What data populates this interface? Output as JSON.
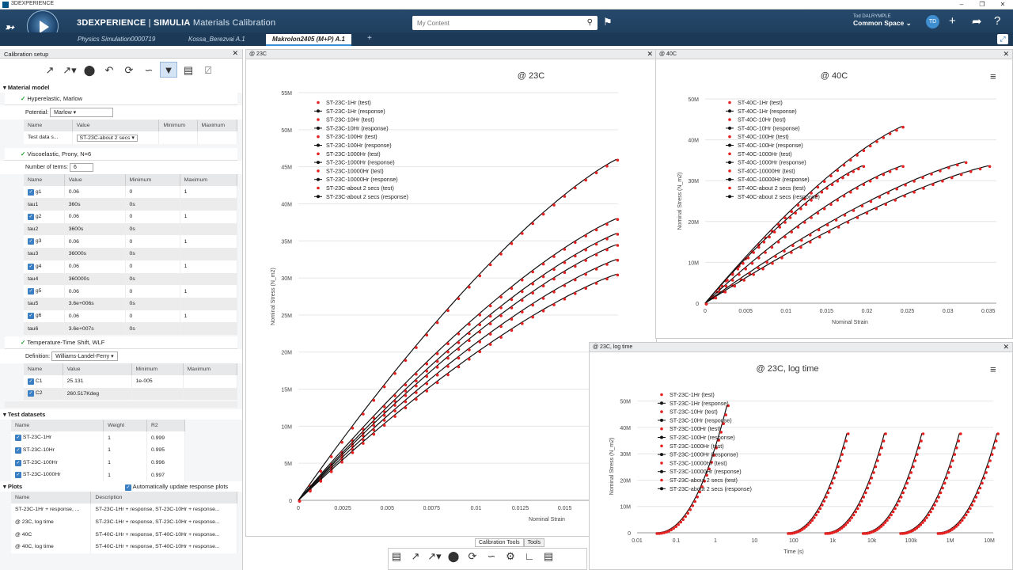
{
  "window": {
    "title": "3DEXPERIENCE"
  },
  "header": {
    "brand_bold": "3DEXPERIENCE",
    "brand_sep": " | ",
    "brand_app": "SIMULIA",
    "brand_sub": "Materials Calibration",
    "user_name": "Tod DALRYMPLE",
    "space": "Common Space",
    "avatar": "TD"
  },
  "search": {
    "placeholder": "My Content"
  },
  "tabs": [
    {
      "label": "Physics Simulation0000719"
    },
    {
      "label": "Kossa_Berezvai A.1"
    },
    {
      "label": "Makrolon2405 (M+P) A.1"
    }
  ],
  "left": {
    "title": "Calibration setup",
    "material_model": "Material model",
    "hyper": {
      "title": "Hyperelastic, Marlow",
      "potential_label": "Potential:",
      "potential": "Marlow",
      "cols": [
        "Name",
        "Value",
        "Minimum",
        "Maximum"
      ],
      "rows": [
        [
          "Test data s...",
          "ST-23C-about 2 secs",
          "",
          ""
        ]
      ]
    },
    "visco": {
      "title": "Viscoelastic, Prony, N=6",
      "terms_label": "Number of terms:",
      "terms": "6",
      "cols": [
        "Name",
        "Value",
        "Minimum",
        "Maximum"
      ],
      "rows": [
        {
          "cb": true,
          "name": "g1",
          "value": "0.06",
          "min": "0",
          "max": "1"
        },
        {
          "cb": false,
          "name": "tau1",
          "value": "360s",
          "min": "0s",
          "max": ""
        },
        {
          "cb": true,
          "name": "g2",
          "value": "0.06",
          "min": "0",
          "max": "1"
        },
        {
          "cb": false,
          "name": "tau2",
          "value": "3600s",
          "min": "0s",
          "max": ""
        },
        {
          "cb": true,
          "name": "g3",
          "value": "0.06",
          "min": "0",
          "max": "1"
        },
        {
          "cb": false,
          "name": "tau3",
          "value": "36000s",
          "min": "0s",
          "max": ""
        },
        {
          "cb": true,
          "name": "g4",
          "value": "0.06",
          "min": "0",
          "max": "1"
        },
        {
          "cb": false,
          "name": "tau4",
          "value": "360000s",
          "min": "0s",
          "max": ""
        },
        {
          "cb": true,
          "name": "g5",
          "value": "0.06",
          "min": "0",
          "max": "1"
        },
        {
          "cb": false,
          "name": "tau5",
          "value": "3.6e+006s",
          "min": "0s",
          "max": ""
        },
        {
          "cb": true,
          "name": "g6",
          "value": "0.06",
          "min": "0",
          "max": "1"
        },
        {
          "cb": false,
          "name": "tau6",
          "value": "3.6e+007s",
          "min": "0s",
          "max": ""
        }
      ]
    },
    "temp": {
      "title": "Temperature-Time Shift, WLF",
      "def_label": "Definition:",
      "definition": "Williams-Landel-Ferry",
      "cols": [
        "Name",
        "Value",
        "Minimum",
        "Maximum"
      ],
      "rows": [
        {
          "name": "C1",
          "value": "25.131",
          "min": "1e-005",
          "max": ""
        },
        {
          "name": "C2",
          "value": "260.517Kdeg",
          "min": "",
          "max": ""
        }
      ]
    },
    "datasets": {
      "title": "Test datasets",
      "cols": [
        "Name",
        "Weight",
        "R2"
      ],
      "rows": [
        {
          "name": "ST-23C-1Hr",
          "w": "1",
          "r2": "0.999"
        },
        {
          "name": "ST-23C-10Hr",
          "w": "1",
          "r2": "0.995"
        },
        {
          "name": "ST-23C-100Hr",
          "w": "1",
          "r2": "0.996"
        },
        {
          "name": "ST-23C-1000Hr",
          "w": "1",
          "r2": "0.997"
        }
      ]
    },
    "plots": {
      "title": "Plots",
      "auto_label": "Automatically update response plots",
      "cols": [
        "Name",
        "Description"
      ],
      "rows": [
        {
          "name": "ST-23C-1Hr + response, ...",
          "desc": "ST-23C-1Hr + response, ST-23C-10Hr + response..."
        },
        {
          "name": "@ 23C, log time",
          "desc": "ST-23C-1Hr + response, ST-23C-10Hr + response..."
        },
        {
          "name": "@ 40C",
          "desc": "ST-40C-1Hr + response, ST-40C-10Hr + response..."
        },
        {
          "name": "@ 40C, log time",
          "desc": "ST-40C-1Hr + response, ST-40C-10Hr + response..."
        }
      ]
    }
  },
  "bottom": {
    "tab1": "Calibration Tools",
    "tab2": "Tools"
  },
  "chart_data": [
    {
      "panel": "@ 23C",
      "title": "@ 23C",
      "type": "scatter",
      "xlabel": "Nominal Strain",
      "ylabel": "Nominal Stress (N_m2)",
      "xticks": [
        "0",
        "0.0025",
        "0.005",
        "0.0075",
        "0.01",
        "0.0125",
        "0.015",
        "0.0175"
      ],
      "yticks": [
        "0",
        "5M",
        "10M",
        "15M",
        "20M",
        "25M",
        "30M",
        "35M",
        "40M",
        "45M",
        "50M",
        "55M"
      ],
      "xlim": [
        0,
        0.0195
      ],
      "ylim": [
        0,
        55
      ],
      "series": [
        {
          "name": "ST-23C-1Hr (test)"
        },
        {
          "name": "ST-23C-1Hr (response)"
        },
        {
          "name": "ST-23C-10Hr (test)"
        },
        {
          "name": "ST-23C-10Hr (response)"
        },
        {
          "name": "ST-23C-100Hr (test)"
        },
        {
          "name": "ST-23C-100Hr (response)"
        },
        {
          "name": "ST-23C-1000Hr (test)"
        },
        {
          "name": "ST-23C-1000Hr (response)"
        },
        {
          "name": "ST-23C-10000Hr (test)"
        },
        {
          "name": "ST-23C-10000Hr (response)"
        },
        {
          "name": "ST-23C-about 2 secs (test)"
        },
        {
          "name": "ST-23C-about 2 secs (response)"
        }
      ],
      "curves": [
        {
          "xmax": 0.0194,
          "ymax": 46
        },
        {
          "xmax": 0.0194,
          "ymax": 38
        },
        {
          "xmax": 0.0194,
          "ymax": 36
        },
        {
          "xmax": 0.0194,
          "ymax": 34.5
        },
        {
          "xmax": 0.0194,
          "ymax": 32.5
        },
        {
          "xmax": 0.0194,
          "ymax": 30.5
        }
      ]
    },
    {
      "panel": "@ 40C",
      "title": "@ 40C",
      "type": "scatter",
      "xlabel": "Nominal Strain",
      "ylabel": "Nominal Stress (N_m2)",
      "xticks": [
        "0",
        "0.005",
        "0.01",
        "0.015",
        "0.02",
        "0.025",
        "0.03",
        "0.035"
      ],
      "yticks": [
        "0",
        "10M",
        "20M",
        "30M",
        "40M",
        "50M"
      ],
      "xlim": [
        0,
        0.037
      ],
      "ylim": [
        0,
        52
      ],
      "series": [
        {
          "name": "ST-40C-1Hr (test)"
        },
        {
          "name": "ST-40C-1Hr (response)"
        },
        {
          "name": "ST-40C-10Hr (test)"
        },
        {
          "name": "ST-40C-10Hr (response)"
        },
        {
          "name": "ST-40C-100Hr (test)"
        },
        {
          "name": "ST-40C-100Hr (response)"
        },
        {
          "name": "ST-40C-1000Hr (test)"
        },
        {
          "name": "ST-40C-1000Hr (response)"
        },
        {
          "name": "ST-40C-10000Hr (test)"
        },
        {
          "name": "ST-40C-10000Hr (response)"
        },
        {
          "name": "ST-40C-about 2 secs (test)"
        },
        {
          "name": "ST-40C-about 2 secs (response)"
        }
      ],
      "curves": [
        {
          "xmax": 0.025,
          "ymax": 45
        },
        {
          "xmax": 0.02,
          "ymax": 35
        },
        {
          "xmax": 0.025,
          "ymax": 35
        },
        {
          "xmax": 0.033,
          "ymax": 36
        },
        {
          "xmax": 0.036,
          "ymax": 35
        }
      ]
    },
    {
      "panel": "@ 23C, log time",
      "title": "@ 23C, log time",
      "type": "scatter",
      "xlabel": "Time (s)",
      "ylabel": "Nominal Stress (N_m2)",
      "xticks": [
        "0.01",
        "0.1",
        "1",
        "10",
        "100",
        "1k",
        "10k",
        "100k",
        "1M",
        "10M"
      ],
      "yticks": [
        "0",
        "10M",
        "20M",
        "30M",
        "40M",
        "50M"
      ],
      "xlim": [
        -2,
        7.5
      ],
      "ylim": [
        0,
        52
      ],
      "series": [
        {
          "name": "ST-23C-1Hr (test)"
        },
        {
          "name": "ST-23C-1Hr (response)"
        },
        {
          "name": "ST-23C-10Hr (test)"
        },
        {
          "name": "ST-23C-10Hr (response)"
        },
        {
          "name": "ST-23C-100Hr (test)"
        },
        {
          "name": "ST-23C-100Hr (response)"
        },
        {
          "name": "ST-23C-1000Hr (test)"
        },
        {
          "name": "ST-23C-1000Hr (response)"
        },
        {
          "name": "ST-23C-10000Hr (test)"
        },
        {
          "name": "ST-23C-10000Hr (response)"
        },
        {
          "name": "ST-23C-about 2 secs (test)"
        },
        {
          "name": "ST-23C-about 2 secs (response)"
        }
      ],
      "curves": [
        {
          "x0": -1.5,
          "x1": 0.4,
          "ymax": 50
        },
        {
          "x0": 2.0,
          "x1": 3.6,
          "ymax": 39
        },
        {
          "x0": 3.0,
          "x1": 4.6,
          "ymax": 39
        },
        {
          "x0": 4.0,
          "x1": 5.6,
          "ymax": 39
        },
        {
          "x0": 5.0,
          "x1": 6.6,
          "ymax": 39
        },
        {
          "x0": 6.0,
          "x1": 7.6,
          "ymax": 39
        }
      ]
    }
  ]
}
